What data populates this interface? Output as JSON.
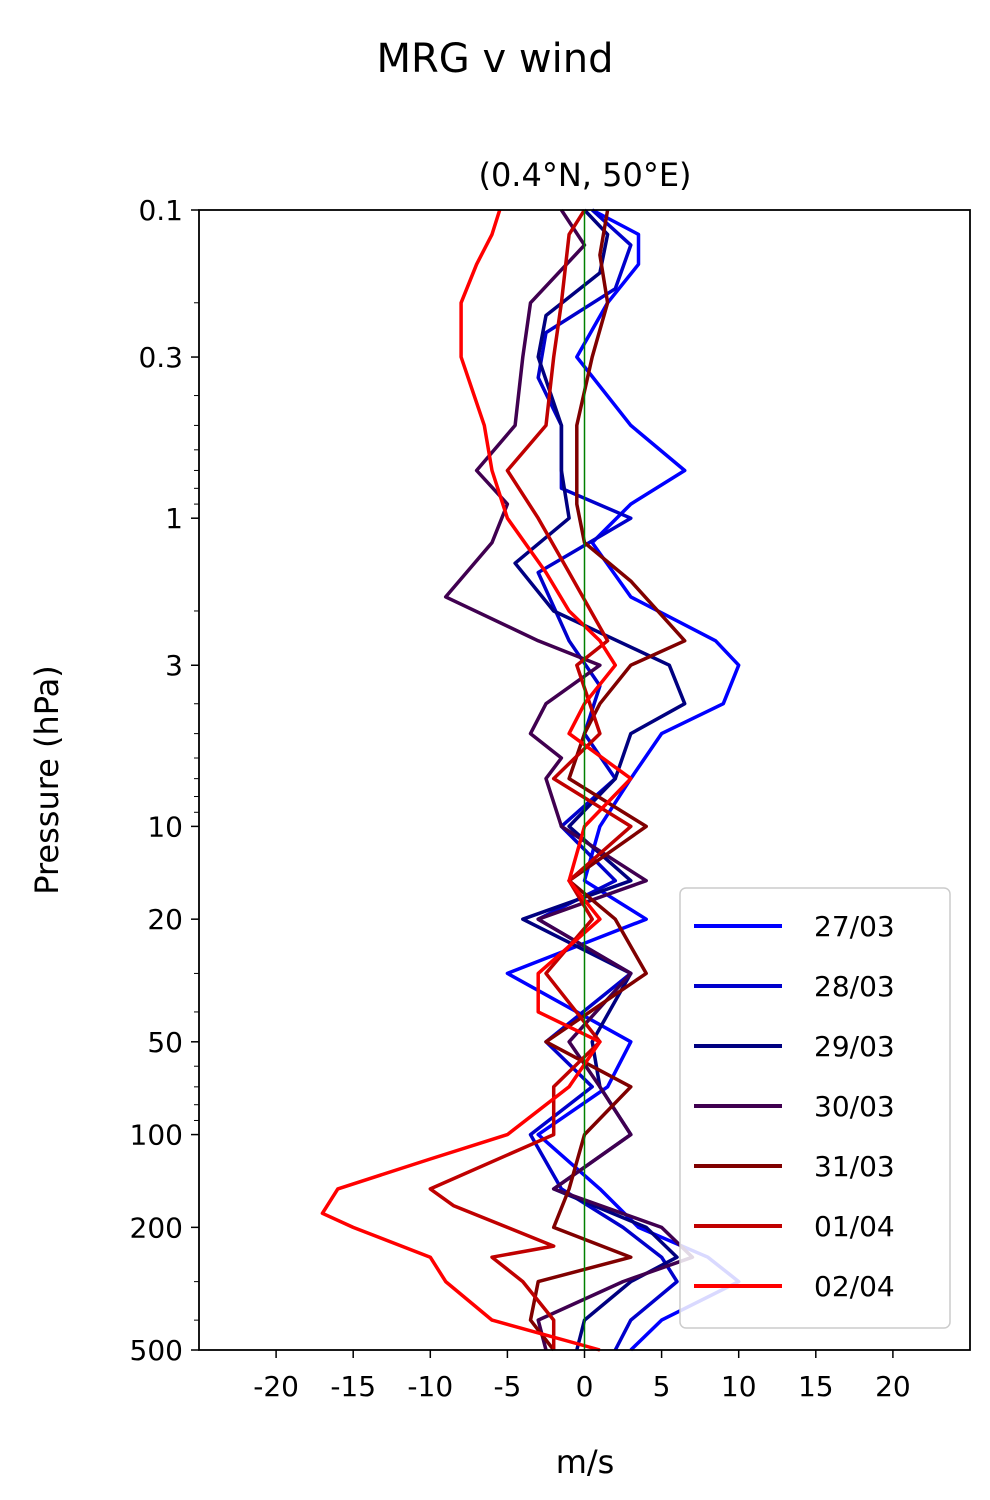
{
  "chart_data": {
    "type": "line",
    "suptitle": "MRG v wind",
    "title": "(0.4°N, 50°E)",
    "xlabel": "m/s",
    "ylabel": "Pressure (hPa)",
    "xlim": [
      -25,
      25
    ],
    "ylim": [
      500,
      0.1
    ],
    "yscale": "log",
    "xticks": [
      -20,
      -15,
      -10,
      -5,
      0,
      5,
      10,
      15,
      20
    ],
    "xtick_labels": [
      "-20",
      "-15",
      "-10",
      "-5",
      "0",
      "5",
      "10",
      "15",
      "20"
    ],
    "yticks": [
      0.1,
      0.3,
      1,
      3,
      10,
      20,
      50,
      100,
      200,
      500
    ],
    "ytick_labels": [
      "0.1",
      "0.3",
      "1",
      "3",
      "10",
      "20",
      "50",
      "100",
      "200",
      "500"
    ],
    "zero_line_color": "#008000",
    "legend_position": "bottom-right",
    "grid": false,
    "series": [
      {
        "name": "27/03",
        "color": "#0000ff",
        "pressure": [
          0.1,
          0.12,
          0.15,
          0.2,
          0.3,
          0.5,
          0.7,
          0.9,
          1.2,
          1.8,
          2.5,
          3,
          4,
          5,
          7,
          10,
          15,
          20,
          30,
          50,
          70,
          100,
          150,
          200,
          250,
          300,
          400,
          500
        ],
        "values": [
          0.5,
          3.5,
          3.5,
          1.5,
          -0.5,
          3,
          6.5,
          3,
          0.5,
          3,
          8.5,
          10,
          9,
          5,
          3,
          1,
          0,
          4,
          -5,
          3,
          1.5,
          -3,
          1,
          3.5,
          8,
          10,
          5,
          3
        ]
      },
      {
        "name": "28/03",
        "color": "#0000cc",
        "pressure": [
          0.1,
          0.13,
          0.18,
          0.25,
          0.35,
          0.5,
          0.8,
          1,
          1.5,
          2.5,
          3.5,
          5,
          7,
          10,
          15,
          20,
          30,
          50,
          70,
          100,
          150,
          200,
          250,
          300,
          400,
          500
        ],
        "values": [
          0.5,
          3,
          2,
          -2.5,
          -3,
          -1.5,
          -1.5,
          3,
          -3,
          -1,
          1,
          0,
          2,
          -1.5,
          2,
          -3,
          3,
          -2.5,
          0.5,
          -3.5,
          -1.5,
          2.5,
          5,
          6,
          3,
          2
        ]
      },
      {
        "name": "29/03",
        "color": "#000080",
        "pressure": [
          0.1,
          0.12,
          0.16,
          0.22,
          0.3,
          0.5,
          0.7,
          1,
          1.4,
          2,
          3,
          4,
          5,
          7,
          10,
          15,
          20,
          30,
          50,
          70,
          100,
          150,
          200,
          250,
          300,
          400,
          500
        ],
        "values": [
          0,
          1.5,
          1,
          -2.5,
          -3,
          -1.5,
          -1.5,
          -1,
          -4.5,
          -2,
          5.5,
          6.5,
          3,
          2,
          -1,
          3,
          -4,
          3,
          0.5,
          1,
          3,
          -2,
          4,
          6,
          3,
          0,
          -0.5
        ]
      },
      {
        "name": "30/03",
        "color": "#400050",
        "pressure": [
          0.1,
          0.13,
          0.2,
          0.3,
          0.5,
          0.7,
          0.9,
          1.2,
          1.8,
          2.5,
          3,
          4,
          5,
          6,
          7,
          10,
          15,
          20,
          30,
          50,
          70,
          100,
          150,
          200,
          250,
          300,
          400,
          500
        ],
        "values": [
          -1.5,
          0,
          -3.5,
          -4,
          -4.5,
          -7,
          -5,
          -6,
          -9,
          -3,
          1,
          -2.5,
          -3.5,
          -1.5,
          -2.5,
          -1.5,
          4,
          -3,
          3,
          -1,
          1,
          3,
          -2,
          5,
          7,
          2.5,
          -3,
          -2.5
        ]
      },
      {
        "name": "31/03",
        "color": "#800000",
        "pressure": [
          0.1,
          0.14,
          0.2,
          0.3,
          0.5,
          0.7,
          0.9,
          1.2,
          1.6,
          2.2,
          2.5,
          3,
          4,
          5,
          7,
          10,
          15,
          20,
          30,
          50,
          70,
          100,
          150,
          200,
          250,
          300,
          400,
          500
        ],
        "values": [
          1.5,
          1,
          1.5,
          0.5,
          -0.5,
          -0.5,
          -0.5,
          0,
          3,
          5.5,
          6.5,
          3,
          1,
          0,
          -1,
          4,
          -1,
          2,
          4,
          -2.5,
          3,
          0,
          -1,
          -2,
          3,
          -3,
          -3.5,
          -2
        ]
      },
      {
        "name": "01/04",
        "color": "#c00000",
        "pressure": [
          0.1,
          0.12,
          0.2,
          0.3,
          0.5,
          0.7,
          1,
          1.5,
          2.5,
          3,
          5,
          7,
          10,
          15,
          20,
          30,
          50,
          70,
          100,
          150,
          170,
          200,
          230,
          250,
          300,
          400,
          500
        ],
        "values": [
          0,
          -1,
          -1.5,
          -2,
          -2.5,
          -5,
          -3,
          -1,
          1.5,
          -0.5,
          1,
          -2,
          3,
          -1,
          0.5,
          -2.5,
          1,
          -2,
          -2,
          -10,
          -8.5,
          -5,
          -2,
          -6,
          -4,
          -2,
          -2
        ]
      },
      {
        "name": "02/04",
        "color": "#ff0000",
        "pressure": [
          0.1,
          0.12,
          0.15,
          0.2,
          0.3,
          0.5,
          0.7,
          1,
          1.5,
          2,
          2.5,
          3,
          4,
          5,
          7,
          10,
          15,
          20,
          30,
          40,
          50,
          70,
          100,
          120,
          150,
          180,
          200,
          250,
          300,
          400,
          500
        ],
        "values": [
          -5.5,
          -6,
          -7,
          -8,
          -8,
          -6.5,
          -6,
          -5,
          -2.5,
          -1,
          1,
          2,
          0,
          -1,
          3,
          0,
          -1,
          1,
          -3,
          -3,
          1,
          -1,
          -5,
          -10,
          -16,
          -17,
          -15,
          -10,
          -9,
          -6,
          1
        ]
      }
    ]
  }
}
